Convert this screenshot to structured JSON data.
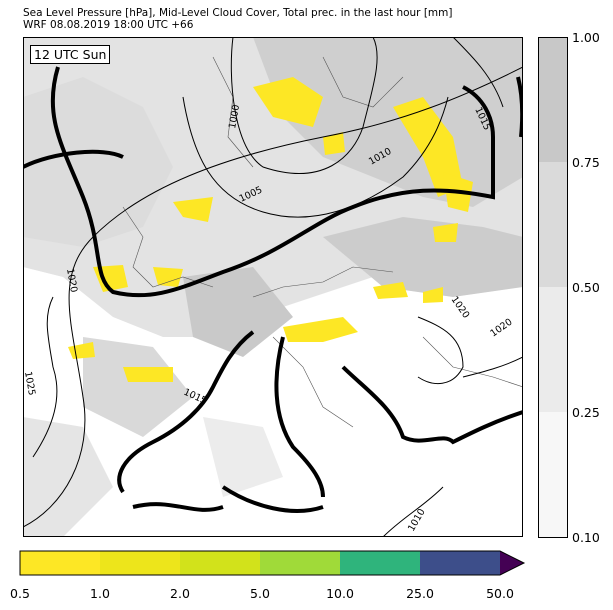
{
  "header": {
    "title_line1": "Sea Level Pressure [hPa], Mid-Level Cloud Cover, Total prec. in the last hour [mm]",
    "title_line2": "WRF 08.08.2019 18:00 UTC +66"
  },
  "map": {
    "time_badge": "12 UTC Sun",
    "isobar_labels": [
      "1000",
      "1005",
      "1010",
      "1015",
      "1020",
      "1025"
    ],
    "highlighted_isobar": "1015",
    "colors": {
      "land_shade": "#e6e6e6",
      "cloud_light": "#d6d6d6",
      "cloud_dark": "#c3c3c3",
      "precip_yellow": "#fde725",
      "isobar": "#000000"
    }
  },
  "cloud_colorbar": {
    "ticks": [
      "1.00",
      "0.75",
      "0.50",
      "0.25",
      "0.10"
    ],
    "colors": [
      "#c8c8c8",
      "#dadada",
      "#ebebeb",
      "#f7f7f7"
    ]
  },
  "precip_colorbar": {
    "ticks": [
      "0.5",
      "1.0",
      "2.0",
      "5.0",
      "10.0",
      "25.0",
      "50.0"
    ],
    "colors": [
      "#fde725",
      "#ede51b",
      "#d2e21b",
      "#a0da39",
      "#2fb47c",
      "#3d4e8a",
      "#440154"
    ]
  }
}
